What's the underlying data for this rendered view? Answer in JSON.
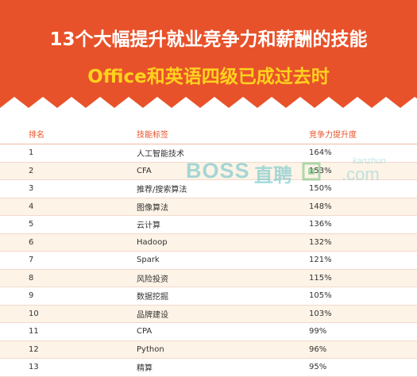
{
  "header": {
    "title_line1": "13个大幅提升就业竞争力和薪酬的技能",
    "title_line2": "Office和英语四级已成过去时",
    "bg_color": "#e8522a",
    "line2_color": "#ffd21e"
  },
  "table": {
    "headers": {
      "rank": "排名",
      "skill": "技能标签",
      "pct": "竞争力提升度"
    },
    "rows": [
      {
        "rank": "1",
        "skill": "人工智能技术",
        "pct": "164%"
      },
      {
        "rank": "2",
        "skill": "CFA",
        "pct": "153%"
      },
      {
        "rank": "3",
        "skill": "推荐/搜索算法",
        "pct": "150%"
      },
      {
        "rank": "4",
        "skill": "图像算法",
        "pct": "148%"
      },
      {
        "rank": "5",
        "skill": "云计算",
        "pct": "136%"
      },
      {
        "rank": "6",
        "skill": "Hadoop",
        "pct": "132%"
      },
      {
        "rank": "7",
        "skill": "Spark",
        "pct": "121%"
      },
      {
        "rank": "8",
        "skill": "风险投资",
        "pct": "115%"
      },
      {
        "rank": "9",
        "skill": "数据挖掘",
        "pct": "105%"
      },
      {
        "rank": "10",
        "skill": "品牌建设",
        "pct": "103%"
      },
      {
        "rank": "11",
        "skill": "CPA",
        "pct": "99%"
      },
      {
        "rank": "12",
        "skill": "Python",
        "pct": "96%"
      },
      {
        "rank": "13",
        "skill": "精算",
        "pct": "95%"
      }
    ]
  },
  "watermark": {
    "brand": "BOSS",
    "brand_cn": "直聘",
    "site_top": "kanzhun",
    "site_bottom": ".com",
    "color": "#5dc0c6"
  }
}
